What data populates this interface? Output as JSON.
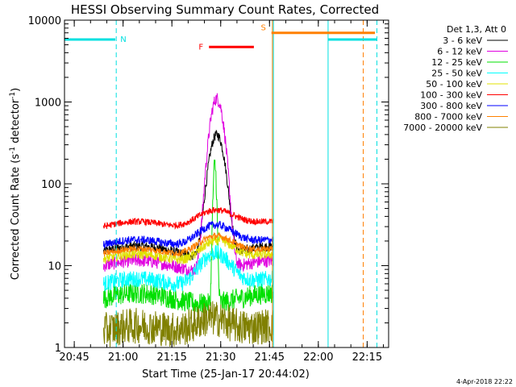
{
  "chart_data": {
    "type": "line",
    "title": "HESSI Observing Summary Count Rates, Corrected",
    "xlabel": "Start Time (25-Jan-17 20:44:02)",
    "ylabel_main": "Corrected Count Rate (s",
    "ylabel_sup1": "-1",
    "ylabel_mid": " detector",
    "ylabel_sup2": "-1",
    "ylabel_end": ")",
    "yscale": "log",
    "ylim": [
      1,
      10000
    ],
    "xlim_minutes": [
      20.7,
      22.36
    ],
    "x_unit": "hours of day (decimal)",
    "xticks": [
      {
        "value": 20.75,
        "label": "20:45"
      },
      {
        "value": 21.0,
        "label": "21:00"
      },
      {
        "value": 21.25,
        "label": "21:15"
      },
      {
        "value": 21.5,
        "label": "21:30"
      },
      {
        "value": 21.75,
        "label": "21:45"
      },
      {
        "value": 22.0,
        "label": "22:00"
      },
      {
        "value": 22.25,
        "label": "22:15"
      }
    ],
    "yticks": [
      {
        "value": 1,
        "label": "1"
      },
      {
        "value": 10,
        "label": "10"
      },
      {
        "value": 100,
        "label": "100"
      },
      {
        "value": 1000,
        "label": "1000"
      },
      {
        "value": 10000,
        "label": "10000"
      }
    ],
    "legend_header": "Det 1,3, Att 0",
    "legend_position": "right",
    "series": [
      {
        "name": "3 - 6 keV",
        "color": "#000000",
        "start": 20.9,
        "end": 21.77,
        "base": 15,
        "peak": 400,
        "peak_at": 21.48,
        "width": 0.045,
        "noise": 0.06
      },
      {
        "name": "6 - 12 keV",
        "color": "#e000e0",
        "start": 20.9,
        "end": 21.77,
        "base": 10,
        "peak": 1100,
        "peak_at": 21.48,
        "width": 0.04,
        "noise": 0.08
      },
      {
        "name": "12 - 25 keV",
        "color": "#00e000",
        "start": 20.9,
        "end": 21.77,
        "base": 4,
        "peak": 170,
        "peak_at": 21.47,
        "width": 0.01,
        "noise": 0.13
      },
      {
        "name": "25 - 50 keV",
        "color": "#00ffff",
        "start": 20.9,
        "end": 21.77,
        "base": 6,
        "peak": 15,
        "peak_at": 21.47,
        "width": 0.1,
        "noise": 0.1
      },
      {
        "name": "50 - 100 keV",
        "color": "#e0e000",
        "start": 20.9,
        "end": 21.77,
        "base": 12,
        "peak": 22,
        "peak_at": 21.48,
        "width": 0.11,
        "noise": 0.06
      },
      {
        "name": "100 - 300 keV",
        "color": "#ff0000",
        "start": 20.9,
        "end": 21.77,
        "base": 30,
        "peak": 52,
        "peak_at": 21.47,
        "width": 0.13,
        "noise": 0.04
      },
      {
        "name": "300 - 800 keV",
        "color": "#0000ff",
        "start": 20.9,
        "end": 21.77,
        "base": 18,
        "peak": 34,
        "peak_at": 21.47,
        "width": 0.12,
        "noise": 0.05
      },
      {
        "name": "800 - 7000 keV",
        "color": "#ff8000",
        "start": 20.9,
        "end": 21.77,
        "base": 14,
        "peak": 25,
        "peak_at": 21.47,
        "width": 0.12,
        "noise": 0.04
      },
      {
        "name": "7000 - 20000 keV",
        "color": "#808000",
        "start": 20.9,
        "end": 21.77,
        "base": 1.6,
        "peak": 2.5,
        "peak_at": 21.45,
        "width": 0.12,
        "noise": 0.22
      }
    ],
    "flag_labels": [
      {
        "label": "N",
        "color": "#00e0e0"
      },
      {
        "label": "F",
        "color": "#ff0000"
      },
      {
        "label": "S",
        "color": "#ff8000"
      }
    ],
    "flag_bars": [
      {
        "flag": "N",
        "color": "#00e0e0",
        "start": 20.7,
        "end": 20.96,
        "level": 5800
      },
      {
        "flag": "N",
        "color": "#00e0e0",
        "start": 22.05,
        "end": 22.3,
        "level": 5800
      },
      {
        "flag": "F",
        "color": "#ff0000",
        "start": 21.44,
        "end": 21.67,
        "level": 4700
      },
      {
        "flag": "S",
        "color": "#ff8000",
        "start": 21.76,
        "end": 22.29,
        "level": 7000
      }
    ],
    "vlines": [
      {
        "x": 20.7,
        "color": "#00e0e0",
        "dash": false
      },
      {
        "x": 20.965,
        "color": "#00e0e0",
        "dash": true
      },
      {
        "x": 21.765,
        "color": "#ff8000",
        "dash": false
      },
      {
        "x": 21.77,
        "color": "#00e0e0",
        "dash": false
      },
      {
        "x": 22.05,
        "color": "#00e0e0",
        "dash": false
      },
      {
        "x": 22.23,
        "color": "#ff8000",
        "dash": true
      },
      {
        "x": 22.3,
        "color": "#00e0e0",
        "dash": true
      }
    ]
  },
  "footer": {
    "date": "4-Apr-2018 22:22"
  }
}
